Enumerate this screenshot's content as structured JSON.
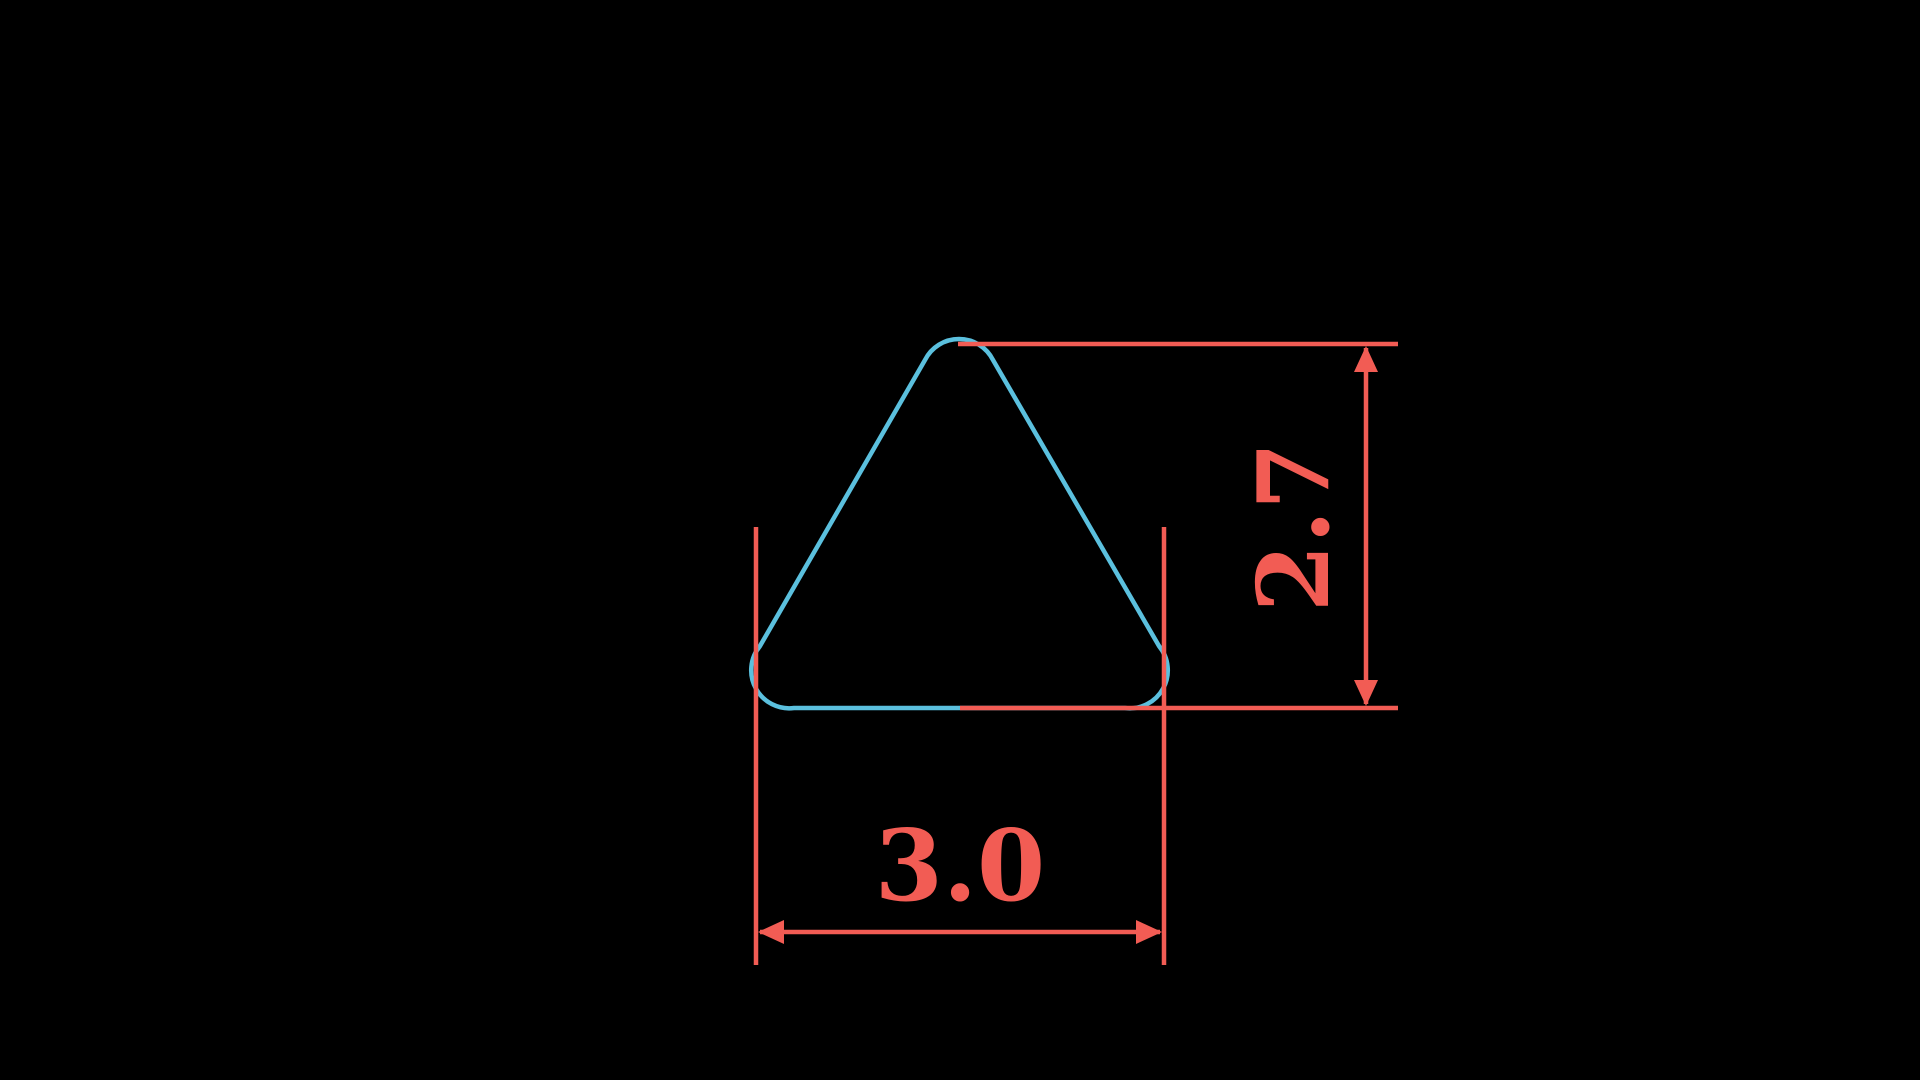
{
  "dimensions": {
    "width_label": "3.0",
    "height_label": "2.7"
  },
  "colors": {
    "background": "#000000",
    "shape_stroke": "#5bc0de",
    "dimension": "#f25c54"
  }
}
